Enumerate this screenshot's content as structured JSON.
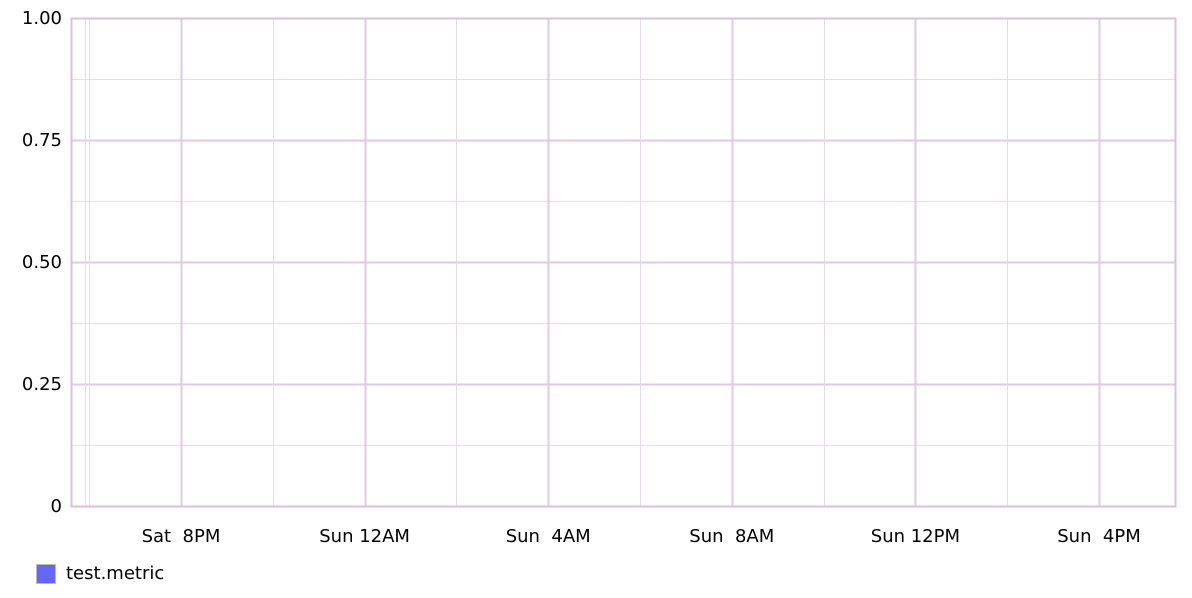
{
  "chart_data": {
    "type": "line",
    "title": "",
    "xlabel": "",
    "ylabel": "",
    "ylim": [
      0,
      1
    ],
    "y_ticks": [
      {
        "value": 0,
        "label": "0"
      },
      {
        "value": 0.25,
        "label": "0.25"
      },
      {
        "value": 0.5,
        "label": "0.50"
      },
      {
        "value": 0.75,
        "label": "0.75"
      },
      {
        "value": 1,
        "label": "1.00"
      }
    ],
    "x_ticks": [
      "Sat  8PM",
      "Sun 12AM",
      "Sun  4AM",
      "Sun  8AM",
      "Sun 12PM",
      "Sun  4PM"
    ],
    "grid": true,
    "legend_position": "bottom-left",
    "series": [
      {
        "name": "test.metric",
        "color": "#6666ff",
        "values": []
      }
    ],
    "colors": {
      "grid": "#ead9ee",
      "grid_major": "#e0c8e6",
      "axis": "#dbbfe3"
    }
  }
}
